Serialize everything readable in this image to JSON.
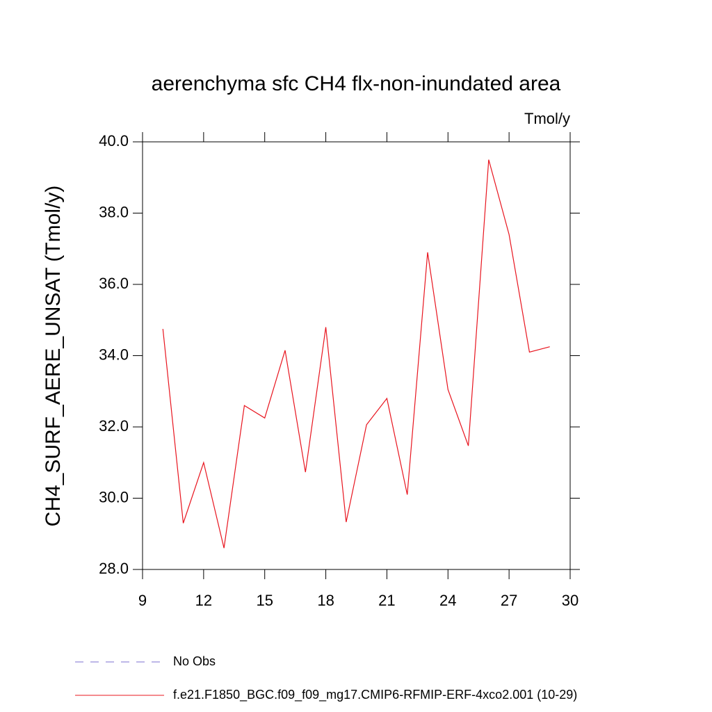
{
  "chart_data": {
    "type": "line",
    "title": "aerenchyma sfc CH4 flx-non-inundated area",
    "units": "Tmol/y",
    "ylabel": "CH4_SURF_AERE_UNSAT  (Tmol/y)",
    "x": [
      10,
      11,
      12,
      13,
      14,
      15,
      16,
      17,
      18,
      19,
      20,
      21,
      22,
      23,
      24,
      25,
      26,
      27,
      28,
      29
    ],
    "series": [
      {
        "name": "No Obs",
        "color": "#7b6fd0",
        "dashed": true,
        "values": [
          null,
          null,
          null,
          null,
          null,
          null,
          null,
          null,
          null,
          null,
          null,
          null,
          null,
          null,
          null,
          null,
          null,
          null,
          null,
          null
        ]
      },
      {
        "name": "f.e21.F1850_BGC.f09_f09_mg17.CMIP6-RFMIP-ERF-4xco2.001 (10-29)",
        "color": "#e8141e",
        "dashed": false,
        "values": [
          34.75,
          29.3,
          31.0,
          28.6,
          32.6,
          32.25,
          34.15,
          30.73,
          34.8,
          29.33,
          32.06,
          32.8,
          30.1,
          36.9,
          33.05,
          31.47,
          39.5,
          37.4,
          34.1,
          34.25
        ]
      }
    ],
    "xlim": [
      9,
      30
    ],
    "xticks": [
      9,
      12,
      15,
      18,
      21,
      24,
      27,
      30
    ],
    "ylim": [
      28,
      40
    ],
    "yticks": [
      {
        "value": 28,
        "label": "28.0"
      },
      {
        "value": 30,
        "label": "30.0"
      },
      {
        "value": 32,
        "label": "32.0"
      },
      {
        "value": 34,
        "label": "34.0"
      },
      {
        "value": 36,
        "label": "36.0"
      },
      {
        "value": 38,
        "label": "38.0"
      },
      {
        "value": 40,
        "label": "40.0"
      }
    ]
  }
}
